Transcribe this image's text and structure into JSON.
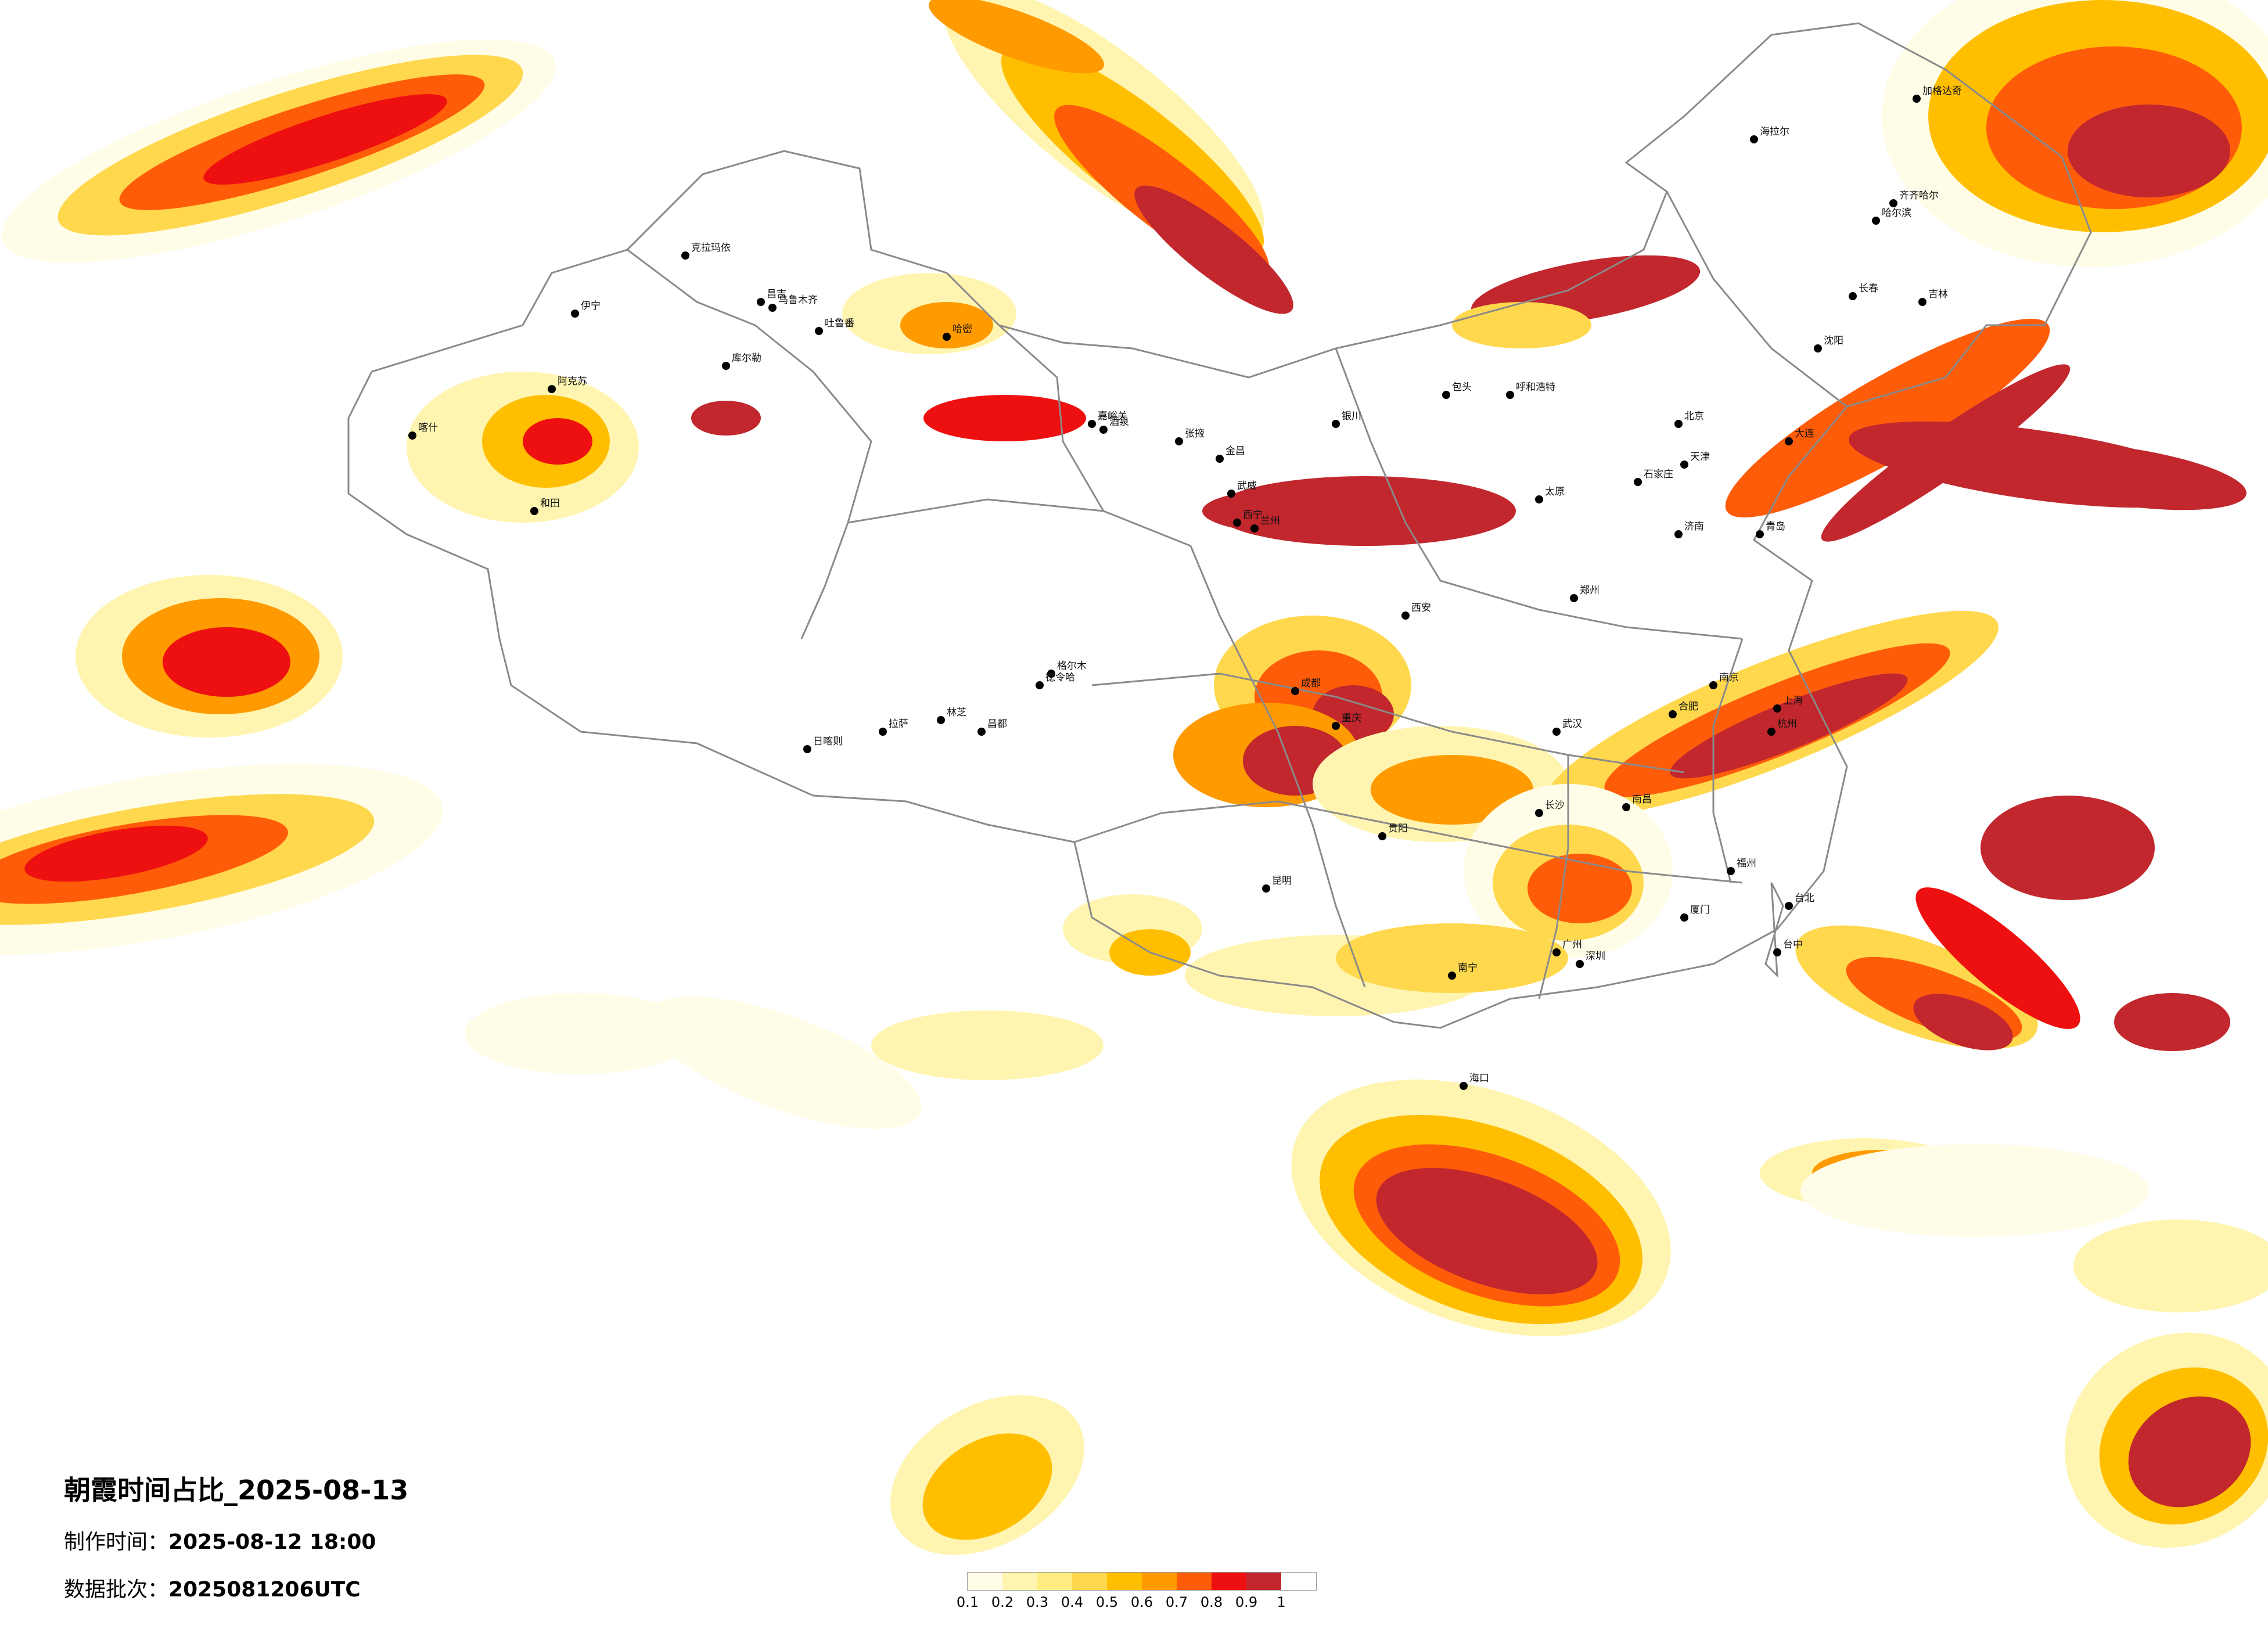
{
  "map": {
    "title": "朝霞时间占比_2025-08-13",
    "made_label": "制作时间：",
    "made_value": "2025-08-12 18:00",
    "batch_label": "数据批次：",
    "batch_value": "2025081206UTC",
    "legend": {
      "colors": [
        "#fffde8",
        "#fff5b0",
        "#ffec80",
        "#ffd84d",
        "#ffbf00",
        "#ff9a00",
        "#ff5c0a",
        "#ee1010",
        "#c1272d"
      ],
      "ticks": [
        "0.1",
        "0.2",
        "0.3",
        "0.4",
        "0.5",
        "0.6",
        "0.7",
        "0.8",
        "0.9",
        "1"
      ]
    },
    "cities": [
      "伊宁",
      "克拉玛依",
      "昌吉",
      "乌鲁木齐",
      "吐鲁番",
      "哈密",
      "库尔勒",
      "阿克苏",
      "喀什",
      "和田",
      "格尔木",
      "德令哈",
      "嘉峪关",
      "酒泉",
      "张掖",
      "金昌",
      "武威",
      "西宁",
      "兰州",
      "银川",
      "海拉尔",
      "加格达奇",
      "齐齐哈尔",
      "哈尔滨",
      "长春",
      "吉林",
      "沈阳",
      "大连",
      "北京",
      "天津",
      "石家庄",
      "太原",
      "呼和浩特",
      "包头",
      "济南",
      "青岛",
      "郑州",
      "西安",
      "武汉",
      "成都",
      "重庆",
      "贵阳",
      "昆明",
      "南宁",
      "长沙",
      "南昌",
      "合肥",
      "南京",
      "上海",
      "杭州",
      "福州",
      "厦门",
      "广州",
      "深圳",
      "海口",
      "台北",
      "台中",
      "拉萨",
      "日喀则",
      "昌都",
      "林芝"
    ]
  }
}
